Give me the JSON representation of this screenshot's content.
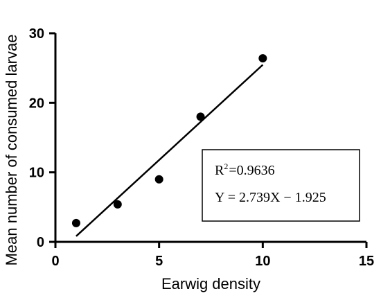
{
  "chart_data": {
    "type": "scatter",
    "title": "",
    "xlabel": "Earwig density",
    "ylabel": "Mean number of consumed larvae",
    "xlim": [
      0,
      15
    ],
    "ylim": [
      0,
      30
    ],
    "xticks": [
      0,
      5,
      10,
      15
    ],
    "yticks": [
      0,
      10,
      20,
      30
    ],
    "grid": false,
    "series": [
      {
        "x": [
          1,
          3,
          5,
          7,
          10
        ],
        "y": [
          2.7,
          5.4,
          9.0,
          18.0,
          26.4
        ]
      }
    ],
    "fit": {
      "slope": 2.739,
      "intercept": -1.925,
      "x_range": [
        1,
        10
      ]
    },
    "annotations": {
      "r2_label": "R",
      "r2_sup": "2",
      "r2_value": "=0.9636",
      "equation": "Y = 2.739X − 1.925"
    }
  }
}
